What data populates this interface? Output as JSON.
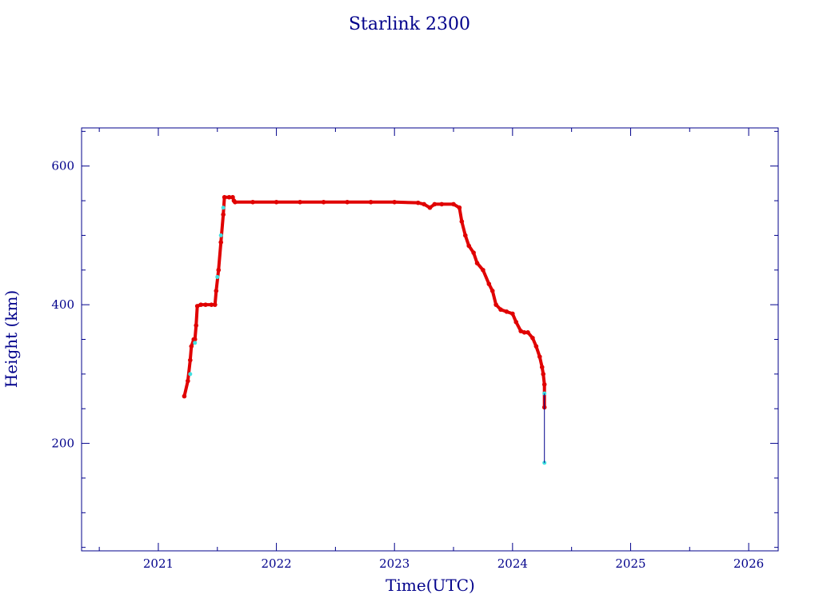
{
  "chart_data": {
    "type": "scatter",
    "title": "Starlink 2300",
    "xlabel": "Time(UTC)",
    "ylabel": "Height (km)",
    "xlim": [
      2020.35,
      2026.25
    ],
    "ylim": [
      45,
      655
    ],
    "x_ticks": [
      2021,
      2022,
      2023,
      2024,
      2025,
      2026
    ],
    "y_ticks": [
      200,
      400,
      600
    ],
    "grid": false,
    "colors": {
      "axis": "#00008b",
      "primary": "#e00000",
      "secondary": "#40e0e0",
      "line": "#00008b"
    },
    "series": [
      {
        "marker": "primary",
        "x": [
          2021.22,
          2021.25,
          2021.27,
          2021.28,
          2021.3,
          2021.31,
          2021.32,
          2021.33,
          2021.36,
          2021.4,
          2021.45,
          2021.48,
          2021.49,
          2021.51,
          2021.53,
          2021.55,
          2021.56,
          2021.6,
          2021.63,
          2021.64,
          2021.65,
          2021.8,
          2022.0,
          2022.2,
          2022.4,
          2022.6,
          2022.8,
          2023.0,
          2023.2,
          2023.25,
          2023.3,
          2023.34,
          2023.4,
          2023.5,
          2023.55,
          2023.57,
          2023.6,
          2023.63,
          2023.67,
          2023.7,
          2023.75,
          2023.8,
          2023.83,
          2023.86,
          2023.9,
          2023.95,
          2024.0,
          2024.03,
          2024.07,
          2024.1,
          2024.13,
          2024.17,
          2024.2,
          2024.23,
          2024.25,
          2024.26,
          2024.27,
          2024.27
        ],
        "y": [
          268,
          290,
          320,
          340,
          350,
          350,
          370,
          398,
          400,
          400,
          400,
          400,
          420,
          450,
          490,
          530,
          555,
          555,
          555,
          550,
          548,
          548,
          548,
          548,
          548,
          548,
          548,
          548,
          547,
          545,
          540,
          545,
          545,
          545,
          540,
          520,
          500,
          485,
          475,
          460,
          450,
          430,
          420,
          400,
          393,
          390,
          387,
          375,
          362,
          360,
          360,
          352,
          340,
          325,
          310,
          300,
          285,
          252
        ]
      },
      {
        "marker": "secondary",
        "x": [
          2021.27,
          2021.31,
          2021.5,
          2021.53,
          2021.55,
          2024.27,
          2024.27
        ],
        "y": [
          300,
          345,
          440,
          500,
          540,
          272,
          172
        ]
      },
      {
        "marker": "line",
        "x": [
          2024.27,
          2024.27,
          2024.27
        ],
        "y": [
          272,
          200,
          172
        ]
      }
    ]
  }
}
